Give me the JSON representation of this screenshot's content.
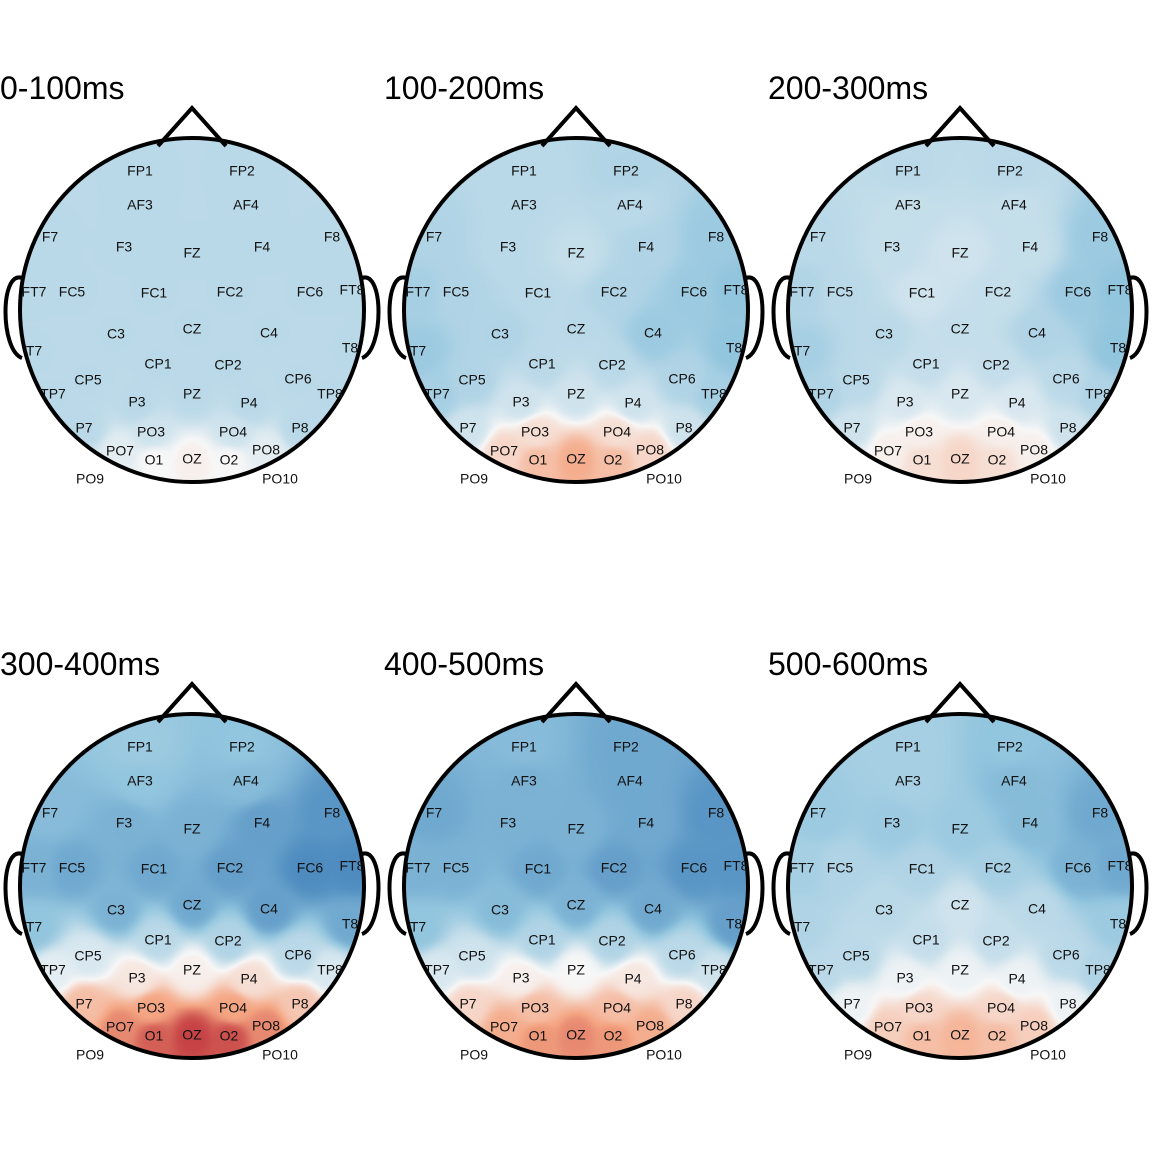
{
  "chart_data": [
    {
      "type": "heatmap",
      "title": "0-100ms",
      "electrodes": [
        {
          "label": "FP1",
          "value": -0.3
        },
        {
          "label": "FP2",
          "value": -0.3
        },
        {
          "label": "AF3",
          "value": -0.3
        },
        {
          "label": "AF4",
          "value": -0.3
        },
        {
          "label": "F7",
          "value": -0.3
        },
        {
          "label": "F3",
          "value": -0.3
        },
        {
          "label": "FZ",
          "value": -0.3
        },
        {
          "label": "F4",
          "value": -0.3
        },
        {
          "label": "F8",
          "value": -0.3
        },
        {
          "label": "FT7",
          "value": -0.3
        },
        {
          "label": "FC5",
          "value": -0.3
        },
        {
          "label": "FC1",
          "value": -0.3
        },
        {
          "label": "FC2",
          "value": -0.3
        },
        {
          "label": "FC6",
          "value": -0.3
        },
        {
          "label": "FT8",
          "value": -0.3
        },
        {
          "label": "T7",
          "value": -0.3
        },
        {
          "label": "C3",
          "value": -0.3
        },
        {
          "label": "CZ",
          "value": -0.3
        },
        {
          "label": "C4",
          "value": -0.3
        },
        {
          "label": "T8",
          "value": -0.3
        },
        {
          "label": "CP5",
          "value": -0.3
        },
        {
          "label": "CP1",
          "value": -0.3
        },
        {
          "label": "CP2",
          "value": -0.3
        },
        {
          "label": "CP6",
          "value": -0.3
        },
        {
          "label": "TP7",
          "value": -0.3
        },
        {
          "label": "TP8",
          "value": -0.3
        },
        {
          "label": "P7",
          "value": -0.3
        },
        {
          "label": "P3",
          "value": -0.3
        },
        {
          "label": "PZ",
          "value": -0.3
        },
        {
          "label": "P4",
          "value": -0.3
        },
        {
          "label": "P8",
          "value": -0.3
        },
        {
          "label": "PO3",
          "value": -0.2
        },
        {
          "label": "PO4",
          "value": -0.2
        },
        {
          "label": "PO7",
          "value": -0.1
        },
        {
          "label": "PO8",
          "value": -0.1
        },
        {
          "label": "O1",
          "value": 0.0
        },
        {
          "label": "OZ",
          "value": 0.05
        },
        {
          "label": "O2",
          "value": 0.0
        },
        {
          "label": "PO9",
          "value": 0.0
        },
        {
          "label": "PO10",
          "value": 0.0
        }
      ]
    },
    {
      "type": "heatmap",
      "title": "100-200ms",
      "electrodes": [
        {
          "label": "FP1",
          "value": -0.3
        },
        {
          "label": "FP2",
          "value": -0.35
        },
        {
          "label": "AF3",
          "value": -0.3
        },
        {
          "label": "AF4",
          "value": -0.3
        },
        {
          "label": "F7",
          "value": -0.35
        },
        {
          "label": "F3",
          "value": -0.3
        },
        {
          "label": "FZ",
          "value": -0.25
        },
        {
          "label": "F4",
          "value": -0.35
        },
        {
          "label": "F8",
          "value": -0.45
        },
        {
          "label": "FT7",
          "value": -0.4
        },
        {
          "label": "FC5",
          "value": -0.35
        },
        {
          "label": "FC1",
          "value": -0.3
        },
        {
          "label": "FC2",
          "value": -0.35
        },
        {
          "label": "FC6",
          "value": -0.45
        },
        {
          "label": "FT8",
          "value": -0.5
        },
        {
          "label": "T7",
          "value": -0.45
        },
        {
          "label": "C3",
          "value": -0.35
        },
        {
          "label": "CZ",
          "value": -0.3
        },
        {
          "label": "C4",
          "value": -0.45
        },
        {
          "label": "T8",
          "value": -0.5
        },
        {
          "label": "CP5",
          "value": -0.35
        },
        {
          "label": "CP1",
          "value": -0.3
        },
        {
          "label": "CP2",
          "value": -0.3
        },
        {
          "label": "CP6",
          "value": -0.35
        },
        {
          "label": "TP7",
          "value": -0.4
        },
        {
          "label": "TP8",
          "value": -0.4
        },
        {
          "label": "P7",
          "value": -0.2
        },
        {
          "label": "P3",
          "value": -0.2
        },
        {
          "label": "PZ",
          "value": -0.2
        },
        {
          "label": "P4",
          "value": -0.2
        },
        {
          "label": "P8",
          "value": -0.2
        },
        {
          "label": "PO3",
          "value": 0.15
        },
        {
          "label": "PO4",
          "value": 0.15
        },
        {
          "label": "PO7",
          "value": 0.2
        },
        {
          "label": "PO8",
          "value": 0.2
        },
        {
          "label": "O1",
          "value": 0.35
        },
        {
          "label": "OZ",
          "value": 0.45
        },
        {
          "label": "O2",
          "value": 0.35
        },
        {
          "label": "PO9",
          "value": 0.1
        },
        {
          "label": "PO10",
          "value": 0.1
        }
      ]
    },
    {
      "type": "heatmap",
      "title": "200-300ms",
      "electrodes": [
        {
          "label": "FP1",
          "value": -0.3
        },
        {
          "label": "FP2",
          "value": -0.3
        },
        {
          "label": "AF3",
          "value": -0.25
        },
        {
          "label": "AF4",
          "value": -0.25
        },
        {
          "label": "F7",
          "value": -0.3
        },
        {
          "label": "F3",
          "value": -0.25
        },
        {
          "label": "FZ",
          "value": -0.2
        },
        {
          "label": "F4",
          "value": -0.25
        },
        {
          "label": "F8",
          "value": -0.45
        },
        {
          "label": "FT7",
          "value": -0.35
        },
        {
          "label": "FC5",
          "value": -0.3
        },
        {
          "label": "FC1",
          "value": -0.2
        },
        {
          "label": "FC2",
          "value": -0.25
        },
        {
          "label": "FC6",
          "value": -0.45
        },
        {
          "label": "FT8",
          "value": -0.5
        },
        {
          "label": "T7",
          "value": -0.4
        },
        {
          "label": "C3",
          "value": -0.3
        },
        {
          "label": "CZ",
          "value": -0.25
        },
        {
          "label": "C4",
          "value": -0.35
        },
        {
          "label": "T8",
          "value": -0.5
        },
        {
          "label": "CP5",
          "value": -0.3
        },
        {
          "label": "CP1",
          "value": -0.25
        },
        {
          "label": "CP2",
          "value": -0.25
        },
        {
          "label": "CP6",
          "value": -0.3
        },
        {
          "label": "TP7",
          "value": -0.35
        },
        {
          "label": "TP8",
          "value": -0.35
        },
        {
          "label": "P7",
          "value": -0.2
        },
        {
          "label": "P3",
          "value": -0.15
        },
        {
          "label": "PZ",
          "value": -0.15
        },
        {
          "label": "P4",
          "value": -0.15
        },
        {
          "label": "P8",
          "value": -0.2
        },
        {
          "label": "PO3",
          "value": 0.05
        },
        {
          "label": "PO4",
          "value": 0.05
        },
        {
          "label": "PO7",
          "value": 0.05
        },
        {
          "label": "PO8",
          "value": 0.05
        },
        {
          "label": "O1",
          "value": 0.15
        },
        {
          "label": "OZ",
          "value": 0.2
        },
        {
          "label": "O2",
          "value": 0.15
        },
        {
          "label": "PO9",
          "value": 0.0
        },
        {
          "label": "PO10",
          "value": 0.0
        }
      ]
    },
    {
      "type": "heatmap",
      "title": "300-400ms",
      "electrodes": [
        {
          "label": "FP1",
          "value": -0.45
        },
        {
          "label": "FP2",
          "value": -0.5
        },
        {
          "label": "AF3",
          "value": -0.5
        },
        {
          "label": "AF4",
          "value": -0.55
        },
        {
          "label": "F7",
          "value": -0.55
        },
        {
          "label": "F3",
          "value": -0.6
        },
        {
          "label": "FZ",
          "value": -0.6
        },
        {
          "label": "F4",
          "value": -0.7
        },
        {
          "label": "F8",
          "value": -0.75
        },
        {
          "label": "FT7",
          "value": -0.6
        },
        {
          "label": "FC5",
          "value": -0.65
        },
        {
          "label": "FC1",
          "value": -0.65
        },
        {
          "label": "FC2",
          "value": -0.7
        },
        {
          "label": "FC6",
          "value": -0.8
        },
        {
          "label": "FT8",
          "value": -0.8
        },
        {
          "label": "T7",
          "value": -0.5
        },
        {
          "label": "C3",
          "value": -0.6
        },
        {
          "label": "CZ",
          "value": -0.65
        },
        {
          "label": "C4",
          "value": -0.7
        },
        {
          "label": "T8",
          "value": -0.65
        },
        {
          "label": "CP5",
          "value": -0.15
        },
        {
          "label": "CP1",
          "value": -0.3
        },
        {
          "label": "CP2",
          "value": -0.35
        },
        {
          "label": "CP6",
          "value": -0.3
        },
        {
          "label": "TP7",
          "value": -0.1
        },
        {
          "label": "TP8",
          "value": -0.15
        },
        {
          "label": "P7",
          "value": 0.35
        },
        {
          "label": "P3",
          "value": 0.1
        },
        {
          "label": "PZ",
          "value": 0.05
        },
        {
          "label": "P4",
          "value": 0.15
        },
        {
          "label": "P8",
          "value": 0.3
        },
        {
          "label": "PO3",
          "value": 0.5
        },
        {
          "label": "PO4",
          "value": 0.5
        },
        {
          "label": "PO7",
          "value": 0.6
        },
        {
          "label": "PO8",
          "value": 0.6
        },
        {
          "label": "O1",
          "value": 0.75
        },
        {
          "label": "OZ",
          "value": 0.85
        },
        {
          "label": "O2",
          "value": 0.8
        },
        {
          "label": "PO9",
          "value": 0.5
        },
        {
          "label": "PO10",
          "value": 0.5
        }
      ]
    },
    {
      "type": "heatmap",
      "title": "400-500ms",
      "electrodes": [
        {
          "label": "FP1",
          "value": -0.55
        },
        {
          "label": "FP2",
          "value": -0.65
        },
        {
          "label": "AF3",
          "value": -0.6
        },
        {
          "label": "AF4",
          "value": -0.65
        },
        {
          "label": "F7",
          "value": -0.65
        },
        {
          "label": "F3",
          "value": -0.6
        },
        {
          "label": "FZ",
          "value": -0.6
        },
        {
          "label": "F4",
          "value": -0.65
        },
        {
          "label": "F8",
          "value": -0.75
        },
        {
          "label": "FT7",
          "value": -0.6
        },
        {
          "label": "FC5",
          "value": -0.6
        },
        {
          "label": "FC1",
          "value": -0.65
        },
        {
          "label": "FC2",
          "value": -0.7
        },
        {
          "label": "FC6",
          "value": -0.75
        },
        {
          "label": "FT8",
          "value": -0.75
        },
        {
          "label": "T7",
          "value": -0.5
        },
        {
          "label": "C3",
          "value": -0.55
        },
        {
          "label": "CZ",
          "value": -0.6
        },
        {
          "label": "C4",
          "value": -0.65
        },
        {
          "label": "T8",
          "value": -0.7
        },
        {
          "label": "CP5",
          "value": -0.2
        },
        {
          "label": "CP1",
          "value": -0.35
        },
        {
          "label": "CP2",
          "value": -0.35
        },
        {
          "label": "CP6",
          "value": -0.3
        },
        {
          "label": "TP7",
          "value": -0.15
        },
        {
          "label": "TP8",
          "value": -0.2
        },
        {
          "label": "P7",
          "value": 0.2
        },
        {
          "label": "P3",
          "value": 0.05
        },
        {
          "label": "PZ",
          "value": 0.0
        },
        {
          "label": "P4",
          "value": 0.1
        },
        {
          "label": "P8",
          "value": 0.2
        },
        {
          "label": "PO3",
          "value": 0.35
        },
        {
          "label": "PO4",
          "value": 0.35
        },
        {
          "label": "PO7",
          "value": 0.45
        },
        {
          "label": "PO8",
          "value": 0.45
        },
        {
          "label": "O1",
          "value": 0.55
        },
        {
          "label": "OZ",
          "value": 0.6
        },
        {
          "label": "O2",
          "value": 0.55
        },
        {
          "label": "PO9",
          "value": 0.3
        },
        {
          "label": "PO10",
          "value": 0.3
        }
      ]
    },
    {
      "type": "heatmap",
      "title": "500-600ms",
      "electrodes": [
        {
          "label": "FP1",
          "value": -0.4
        },
        {
          "label": "FP2",
          "value": -0.5
        },
        {
          "label": "AF3",
          "value": -0.4
        },
        {
          "label": "AF4",
          "value": -0.55
        },
        {
          "label": "F7",
          "value": -0.45
        },
        {
          "label": "F3",
          "value": -0.45
        },
        {
          "label": "FZ",
          "value": -0.45
        },
        {
          "label": "F4",
          "value": -0.55
        },
        {
          "label": "F8",
          "value": -0.65
        },
        {
          "label": "FT7",
          "value": -0.4
        },
        {
          "label": "FC5",
          "value": -0.35
        },
        {
          "label": "FC1",
          "value": -0.35
        },
        {
          "label": "FC2",
          "value": -0.4
        },
        {
          "label": "FC6",
          "value": -0.6
        },
        {
          "label": "FT8",
          "value": -0.65
        },
        {
          "label": "T7",
          "value": -0.35
        },
        {
          "label": "C3",
          "value": -0.3
        },
        {
          "label": "CZ",
          "value": -0.2
        },
        {
          "label": "C4",
          "value": -0.3
        },
        {
          "label": "T8",
          "value": -0.45
        },
        {
          "label": "CP5",
          "value": -0.3
        },
        {
          "label": "CP1",
          "value": -0.25
        },
        {
          "label": "CP2",
          "value": -0.25
        },
        {
          "label": "CP6",
          "value": -0.3
        },
        {
          "label": "TP7",
          "value": -0.3
        },
        {
          "label": "TP8",
          "value": -0.35
        },
        {
          "label": "P7",
          "value": -0.05
        },
        {
          "label": "P3",
          "value": -0.05
        },
        {
          "label": "PZ",
          "value": -0.05
        },
        {
          "label": "P4",
          "value": -0.05
        },
        {
          "label": "P8",
          "value": -0.05
        },
        {
          "label": "PO3",
          "value": 0.2
        },
        {
          "label": "PO4",
          "value": 0.2
        },
        {
          "label": "PO7",
          "value": 0.25
        },
        {
          "label": "PO8",
          "value": 0.25
        },
        {
          "label": "O1",
          "value": 0.35
        },
        {
          "label": "OZ",
          "value": 0.4
        },
        {
          "label": "O2",
          "value": 0.35
        },
        {
          "label": "PO9",
          "value": 0.15
        },
        {
          "label": "PO10",
          "value": 0.15
        }
      ]
    }
  ],
  "colors": {
    "negative": "#2166ac",
    "mid_negative": "#92c5de",
    "neutral": "#f7f7f7",
    "mid_positive": "#f4a582",
    "positive": "#b2182b",
    "outline": "#000000"
  }
}
